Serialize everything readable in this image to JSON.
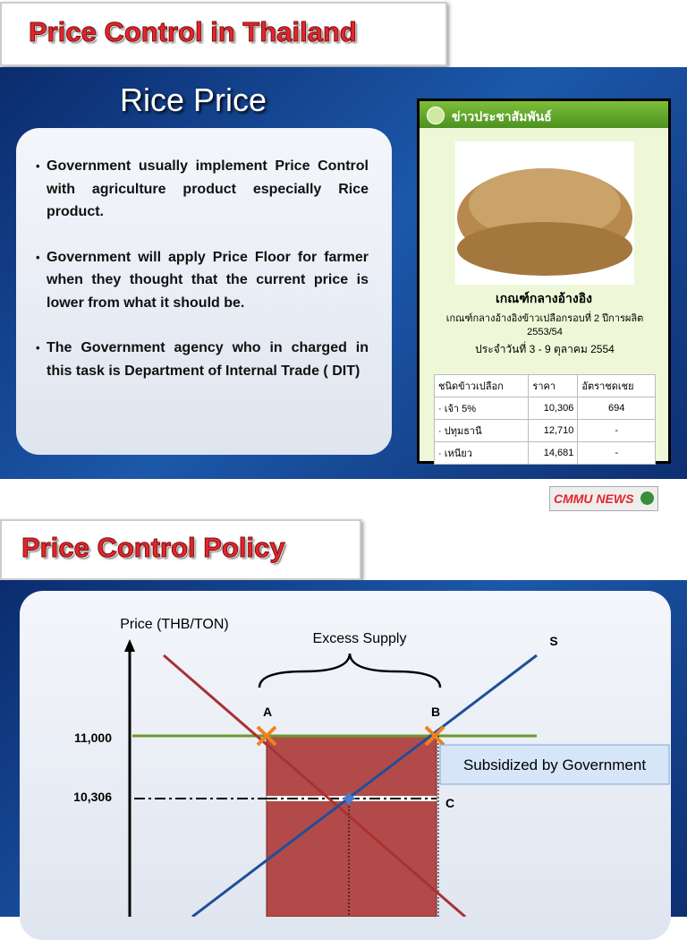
{
  "slides": [
    {
      "title": "Price Control in Thailand",
      "subtitle": "Rice Price",
      "bullets": [
        "Government usually implement Price Control with agriculture product especially Rice product.",
        "Government will apply Price Floor for farmer when they thought that the current price is lower from what it should be.",
        "The Government agency who in charged in this task is Department of Internal Trade ( DIT)"
      ],
      "news": {
        "header": "ข่าวประชาสัมพันธ์",
        "heading": "เกณฑ์กลางอ้างอิง",
        "lines": [
          "เกณฑ์กลางอ้างอิงข้าวเปลือกรอบที่ 2 ปีการผลิต 2553/54",
          "ประจำวันที่ 3 - 9 ตุลาคม 2554"
        ],
        "table": {
          "header": [
            "ชนิดข้าวเปลือก",
            "ราคา",
            "อัตราชดเชย"
          ],
          "rows": [
            [
              "· เจ้า 5%",
              "10,306",
              "694"
            ],
            [
              "· ปทุมธานี",
              "12,710",
              "-"
            ],
            [
              "· เหนียว",
              "14,681",
              "-"
            ]
          ]
        }
      }
    },
    {
      "title": "Price Control Policy",
      "diagram": {
        "y_axis_label": "Price (THB/TON)",
        "annotation": "Excess Supply",
        "supply_label": "S",
        "point_a": "A",
        "point_b": "B",
        "point_c": "C",
        "price_ticks": [
          "11,000",
          "10,306"
        ],
        "callout": "Subsidized by Government"
      }
    }
  ],
  "badge": "CMMU NEWS"
}
